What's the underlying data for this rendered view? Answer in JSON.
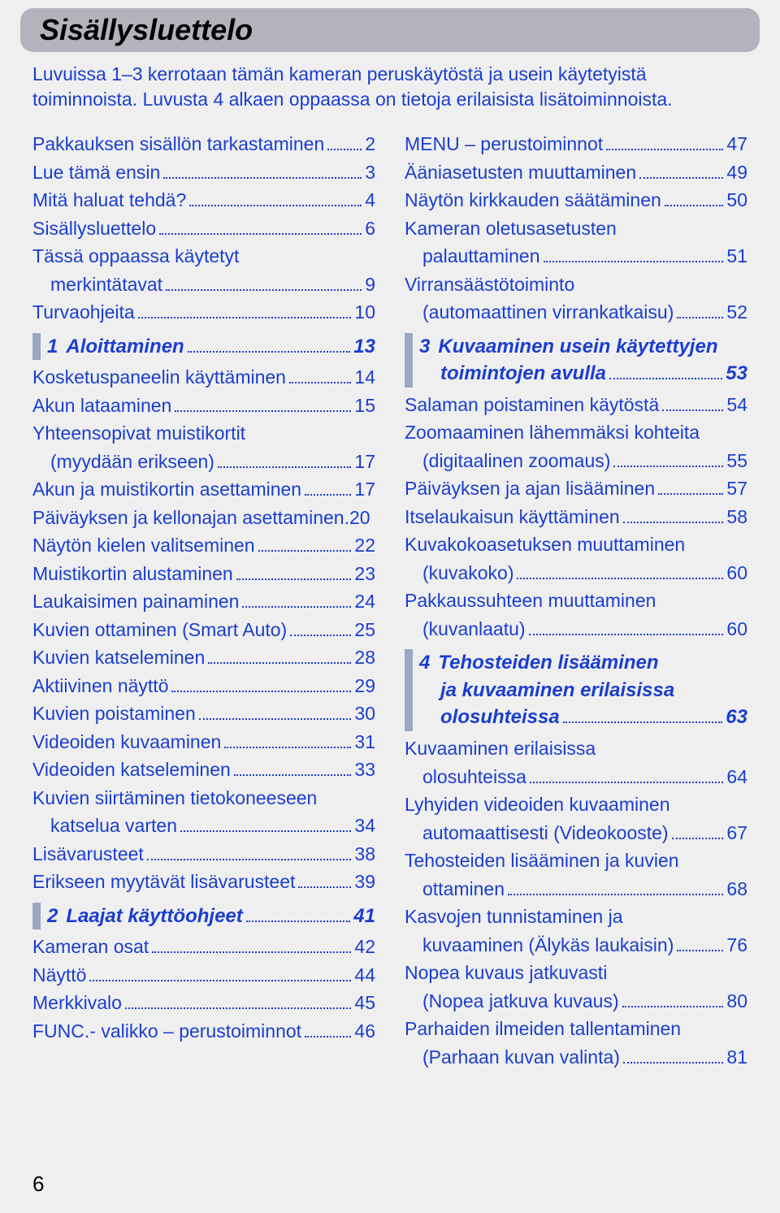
{
  "title": "Sisällysluettelo",
  "intro": "Luvuissa 1–3 kerrotaan tämän kameran peruskäytöstä ja usein käytetyistä toiminnoista. Luvusta 4 alkaen oppaassa on tietoja erilaisista lisätoiminnoista.",
  "page_number": "6",
  "left": {
    "pre": [
      {
        "label": "Pakkauksen sisällön tarkastaminen",
        "page": "2"
      },
      {
        "label": "Lue tämä ensin",
        "page": "3"
      },
      {
        "label": "Mitä haluat tehdä?",
        "page": "4"
      },
      {
        "label": "Sisällysluettelo",
        "page": "6"
      },
      {
        "label": "Tässä oppaassa käytetyt",
        "label2": "merkintätavat",
        "page": "9"
      },
      {
        "label": "Turvaohjeita",
        "page": "10"
      }
    ],
    "sec1": {
      "num": "1",
      "title": "Aloittaminen",
      "page": "13"
    },
    "sec1_items": [
      {
        "label": "Kosketuspaneelin käyttäminen",
        "page": "14"
      },
      {
        "label": "Akun lataaminen",
        "page": "15"
      },
      {
        "label": "Yhteensopivat muistikortit",
        "label2": "(myydään erikseen)",
        "page": "17"
      },
      {
        "label": "Akun ja muistikortin asettaminen",
        "page": "17"
      },
      {
        "label": "Päiväyksen ja kellonajan asettaminen",
        "page": "20",
        "nodots": true
      },
      {
        "label": "Näytön kielen valitseminen",
        "page": "22"
      },
      {
        "label": "Muistikortin alustaminen",
        "page": "23"
      },
      {
        "label": "Laukaisimen painaminen",
        "page": "24"
      },
      {
        "label": "Kuvien ottaminen (Smart Auto)",
        "page": "25"
      },
      {
        "label": "Kuvien katseleminen",
        "page": "28"
      },
      {
        "label": "Aktiivinen näyttö",
        "page": "29"
      },
      {
        "label": "Kuvien poistaminen",
        "page": "30"
      },
      {
        "label": "Videoiden kuvaaminen",
        "page": "31"
      },
      {
        "label": "Videoiden katseleminen",
        "page": "33"
      },
      {
        "label": "Kuvien siirtäminen tietokoneeseen",
        "label2": "katselua varten",
        "page": "34"
      },
      {
        "label": "Lisävarusteet",
        "page": "38"
      },
      {
        "label": "Erikseen myytävät lisävarusteet",
        "page": "39"
      }
    ],
    "sec2": {
      "num": "2",
      "title": "Laajat käyttöohjeet",
      "page": "41"
    },
    "sec2_items": [
      {
        "label": "Kameran osat",
        "page": "42"
      },
      {
        "label": "Näyttö",
        "page": "44"
      },
      {
        "label": "Merkkivalo",
        "page": "45"
      },
      {
        "label": "FUNC.- valikko – perustoiminnot",
        "page": "46"
      }
    ]
  },
  "right": {
    "pre": [
      {
        "label": "MENU – perustoiminnot",
        "page": "47"
      },
      {
        "label": "Ääniasetusten muuttaminen",
        "page": "49"
      },
      {
        "label": "Näytön kirkkauden säätäminen",
        "page": "50"
      },
      {
        "label": "Kameran oletusasetusten",
        "label2": "palauttaminen",
        "page": "51"
      },
      {
        "label": "Virransäästötoiminto",
        "label2": "(automaattinen virrankatkaisu)",
        "page": "52"
      }
    ],
    "sec3": {
      "num": "3",
      "title1": "Kuvaaminen usein käytettyjen",
      "title2": "toimintojen avulla",
      "page": "53"
    },
    "sec3_items": [
      {
        "label": "Salaman poistaminen käytöstä",
        "page": "54"
      },
      {
        "label": "Zoomaaminen lähemmäksi kohteita",
        "label2": "(digitaalinen zoomaus)",
        "page": "55"
      },
      {
        "label": "Päiväyksen ja ajan lisääminen",
        "page": "57"
      },
      {
        "label": "Itselaukaisun käyttäminen",
        "page": "58"
      },
      {
        "label": "Kuvakokoasetuksen muuttaminen",
        "label2": "(kuvakoko)",
        "page": "60"
      },
      {
        "label": "Pakkaussuhteen muuttaminen",
        "label2": "(kuvanlaatu)",
        "page": "60"
      }
    ],
    "sec4": {
      "num": "4",
      "title1": "Tehosteiden lisääminen",
      "title2": "ja kuvaaminen erilaisissa",
      "title3": "olosuhteissa",
      "page": "63"
    },
    "sec4_items": [
      {
        "label": "Kuvaaminen erilaisissa",
        "label2": "olosuhteissa",
        "page": "64"
      },
      {
        "label": "Lyhyiden videoiden kuvaaminen",
        "label2": "automaattisesti (Videokooste)",
        "page": "67"
      },
      {
        "label": "Tehosteiden lisääminen ja kuvien",
        "label2": "ottaminen",
        "page": "68"
      },
      {
        "label": "Kasvojen tunnistaminen ja",
        "label2": "kuvaaminen (Älykäs laukaisin)",
        "page": "76"
      },
      {
        "label": "Nopea kuvaus jatkuvasti",
        "label2": "(Nopea jatkuva kuvaus)",
        "page": "80"
      },
      {
        "label": "Parhaiden ilmeiden tallentaminen",
        "label2": "(Parhaan kuvan valinta)",
        "page": "81"
      }
    ]
  }
}
